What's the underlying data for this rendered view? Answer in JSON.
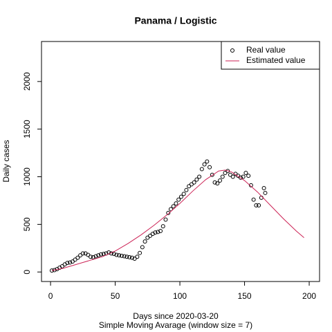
{
  "chart_data": {
    "type": "scatter",
    "title": "Panama / Logistic",
    "x_label": "Days since 2020-03-20",
    "subtitle": "Simple Moving Avarage (window size = 7)",
    "y_label": "Daily cases",
    "xlim": [
      -7,
      208
    ],
    "ylim": [
      -100,
      2420
    ],
    "xticks": [
      0,
      50,
      100,
      150,
      200
    ],
    "yticks": [
      0,
      500,
      1000,
      1500,
      2000
    ],
    "legend": "top-right",
    "series": [
      {
        "name": "Real value",
        "color": "#000000",
        "style": "points",
        "x": [
          1,
          3,
          5,
          7,
          9,
          11,
          13,
          15,
          17,
          19,
          21,
          23,
          25,
          27,
          29,
          31,
          33,
          35,
          37,
          39,
          41,
          43,
          45,
          47,
          49,
          51,
          53,
          55,
          57,
          59,
          61,
          63,
          65,
          67,
          69,
          71,
          73,
          75,
          77,
          79,
          81,
          83,
          85,
          87,
          89,
          91,
          93,
          95,
          97,
          99,
          101,
          103,
          105,
          107,
          109,
          111,
          113,
          115,
          117,
          119,
          121,
          123,
          125,
          127,
          129,
          131,
          133,
          135,
          137,
          139,
          141,
          143,
          145,
          147,
          149,
          151,
          153,
          155,
          157,
          159,
          161,
          163,
          165,
          166
        ],
        "values": [
          15,
          20,
          30,
          45,
          60,
          80,
          95,
          100,
          110,
          130,
          150,
          175,
          195,
          195,
          180,
          160,
          155,
          165,
          175,
          185,
          190,
          195,
          205,
          195,
          190,
          180,
          175,
          170,
          165,
          160,
          155,
          150,
          140,
          160,
          200,
          260,
          320,
          360,
          380,
          400,
          415,
          420,
          430,
          480,
          550,
          620,
          660,
          690,
          720,
          760,
          790,
          820,
          860,
          900,
          920,
          940,
          970,
          1000,
          1080,
          1130,
          1160,
          1100,
          1020,
          940,
          930,
          960,
          1000,
          1040,
          1060,
          1020,
          1000,
          1030,
          1010,
          990,
          1000,
          1040,
          1010,
          910,
          760,
          700,
          700,
          780,
          880,
          830
        ]
      },
      {
        "name": "Estimated value",
        "color": "#cc2255",
        "style": "line",
        "x": [
          1,
          10,
          20,
          30,
          40,
          50,
          60,
          70,
          80,
          90,
          100,
          110,
          120,
          130,
          135,
          140,
          150,
          160,
          170,
          180,
          190,
          196
        ],
        "values": [
          15,
          40,
          80,
          120,
          160,
          220,
          300,
          390,
          490,
          600,
          720,
          850,
          970,
          1060,
          1070,
          1050,
          960,
          840,
          700,
          560,
          430,
          360
        ]
      }
    ]
  }
}
